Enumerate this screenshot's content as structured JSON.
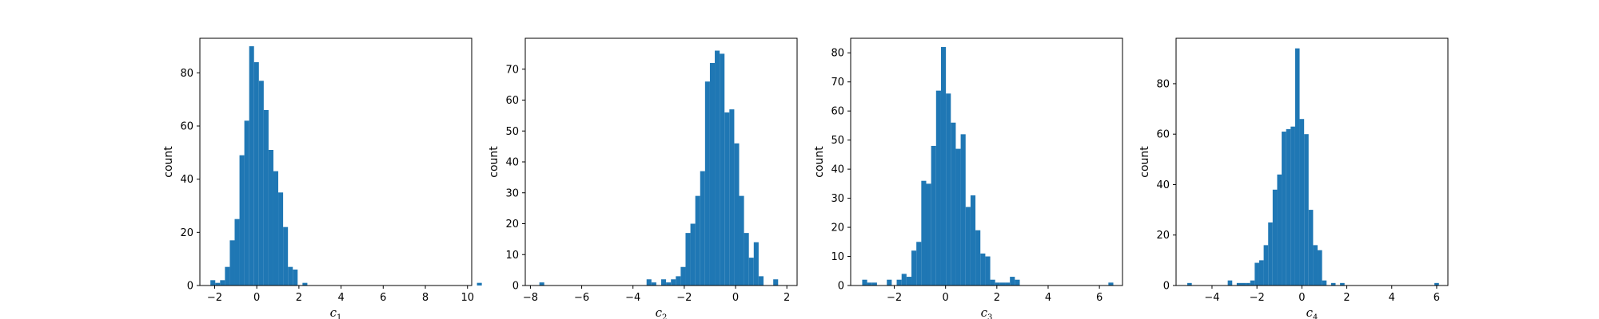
{
  "figure": {
    "background": "#ffffff"
  },
  "chart_data": [
    {
      "type": "bar",
      "subtype": "histogram",
      "xlabel": "c",
      "xlabel_sub": "1",
      "ylabel": "count",
      "xlim": [
        -2.7,
        10.2
      ],
      "ylim": [
        0,
        93
      ],
      "xticks": [
        -2,
        0,
        2,
        4,
        6,
        8,
        10
      ],
      "yticks": [
        0,
        20,
        40,
        60,
        80
      ],
      "bin_start": -2.2,
      "bin_width": 0.23,
      "counts": [
        2,
        1,
        2,
        7,
        17,
        25,
        49,
        62,
        90,
        84,
        77,
        66,
        51,
        43,
        35,
        22,
        7,
        6,
        0,
        1,
        0,
        0,
        0,
        0,
        0,
        0,
        0,
        0,
        0,
        0,
        0,
        0,
        0,
        0,
        0,
        0,
        0,
        0,
        0,
        0,
        0,
        0,
        0,
        0,
        0,
        0,
        0,
        0,
        0,
        0,
        0,
        0,
        0,
        0,
        0,
        1
      ],
      "color": "#1f77b4",
      "grid": false
    },
    {
      "type": "bar",
      "subtype": "histogram",
      "xlabel": "c",
      "xlabel_sub": "2",
      "ylabel": "count",
      "xlim": [
        -8.2,
        2.4
      ],
      "ylim": [
        0,
        80
      ],
      "xticks": [
        -8,
        -6,
        -4,
        -2,
        0,
        2
      ],
      "yticks": [
        0,
        10,
        20,
        30,
        40,
        50,
        60,
        70
      ],
      "bin_start": -7.65,
      "bin_width": 0.19,
      "counts": [
        1,
        0,
        0,
        0,
        0,
        0,
        0,
        0,
        0,
        0,
        0,
        0,
        0,
        0,
        0,
        0,
        0,
        0,
        0,
        0,
        0,
        0,
        2,
        1,
        0,
        2,
        1,
        2,
        3,
        6,
        17,
        20,
        29,
        37,
        66,
        72,
        76,
        75,
        56,
        57,
        46,
        29,
        17,
        9,
        14,
        3,
        0,
        0,
        2
      ],
      "color": "#1f77b4",
      "grid": false
    },
    {
      "type": "bar",
      "subtype": "histogram",
      "xlabel": "c",
      "xlabel_sub": "3",
      "ylabel": "count",
      "xlim": [
        -3.7,
        6.9
      ],
      "ylim": [
        0,
        85
      ],
      "xticks": [
        -2,
        0,
        2,
        4,
        6
      ],
      "yticks": [
        0,
        10,
        20,
        30,
        40,
        50,
        60,
        70,
        80
      ],
      "bin_start": -3.25,
      "bin_width": 0.192,
      "counts": [
        2,
        1,
        1,
        0,
        0,
        2,
        0,
        2,
        4,
        3,
        12,
        15,
        36,
        35,
        48,
        67,
        82,
        66,
        56,
        47,
        52,
        27,
        31,
        19,
        11,
        10,
        2,
        1,
        1,
        1,
        3,
        2,
        0,
        0,
        0,
        0,
        0,
        0,
        0,
        0,
        0,
        0,
        0,
        0,
        0,
        0,
        0,
        0,
        0,
        0,
        1
      ],
      "color": "#1f77b4",
      "grid": false
    },
    {
      "type": "bar",
      "subtype": "histogram",
      "xlabel": "c",
      "xlabel_sub": "4",
      "ylabel": "count",
      "xlim": [
        -5.6,
        6.5
      ],
      "ylim": [
        0,
        98
      ],
      "xticks": [
        -4,
        -2,
        0,
        2,
        4,
        6
      ],
      "yticks": [
        0,
        20,
        40,
        60,
        80
      ],
      "bin_start": -5.1,
      "bin_width": 0.2,
      "counts": [
        1,
        0,
        0,
        0,
        0,
        0,
        0,
        0,
        0,
        2,
        0,
        1,
        1,
        1,
        2,
        9,
        10,
        16,
        25,
        38,
        44,
        61,
        62,
        63,
        94,
        66,
        60,
        30,
        16,
        14,
        2,
        0,
        1,
        0,
        1,
        0,
        0,
        0,
        0,
        0,
        0,
        0,
        0,
        0,
        0,
        0,
        0,
        0,
        0,
        0,
        0,
        0,
        0,
        0,
        0,
        1
      ],
      "color": "#1f77b4",
      "grid": false
    }
  ]
}
